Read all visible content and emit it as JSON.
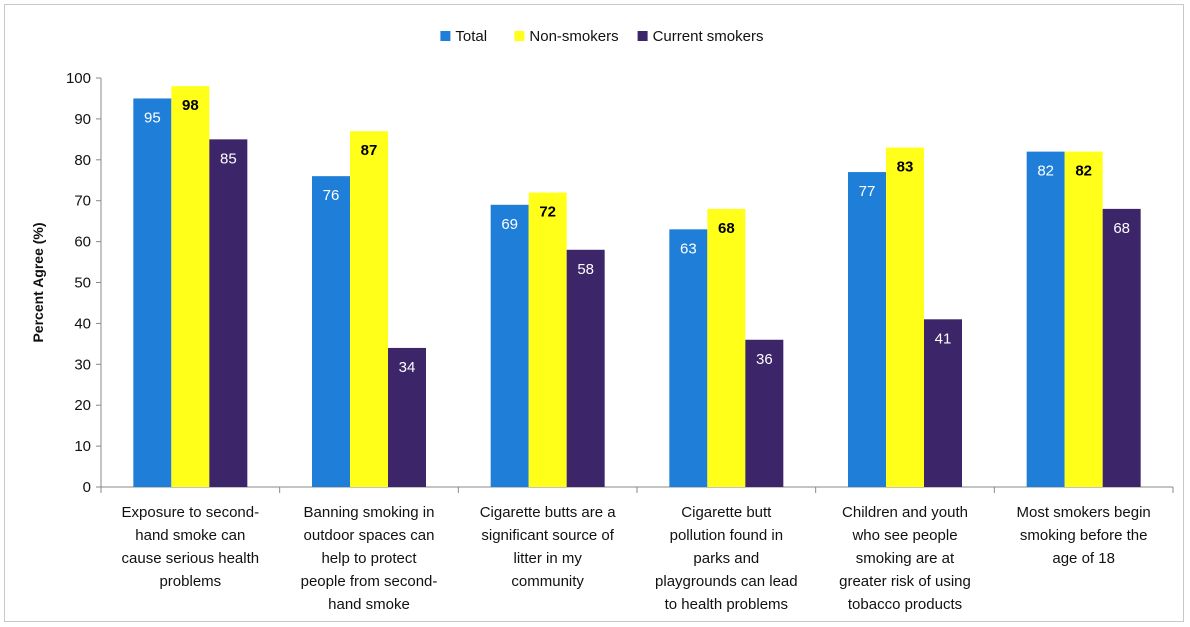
{
  "chart_data": {
    "type": "bar",
    "ylabel": "Percent Agree (%)",
    "xlabel": "",
    "ylim": [
      0,
      100
    ],
    "yticks": [
      0,
      10,
      20,
      30,
      40,
      50,
      60,
      70,
      80,
      90,
      100
    ],
    "grid": false,
    "legend_position": "top-center",
    "categories": [
      [
        "Exposure to second-",
        "hand smoke can",
        "cause serious health",
        "problems"
      ],
      [
        "Banning smoking in",
        "outdoor spaces can",
        "help to protect",
        "people from second-",
        "hand smoke"
      ],
      [
        "Cigarette butts are a",
        "significant source of",
        "litter in my",
        "community"
      ],
      [
        "Cigarette butt",
        "pollution found in",
        "parks and",
        "playgrounds can lead",
        "to health problems"
      ],
      [
        "Children and youth",
        "who see people",
        "smoking are at",
        "greater risk of using",
        "tobacco products"
      ],
      [
        "Most smokers begin",
        "smoking before the",
        "age of 18"
      ]
    ],
    "series": [
      {
        "name": "Total",
        "color": "#1f7fd8",
        "label_style": "light",
        "values": [
          95,
          76,
          69,
          63,
          77,
          82
        ]
      },
      {
        "name": "Non-smokers",
        "color": "#ffff1a",
        "label_style": "bold",
        "values": [
          98,
          87,
          72,
          68,
          83,
          82
        ]
      },
      {
        "name": "Current smokers",
        "color": "#3c2569",
        "label_style": "light",
        "values": [
          85,
          34,
          58,
          36,
          41,
          68
        ]
      }
    ]
  }
}
